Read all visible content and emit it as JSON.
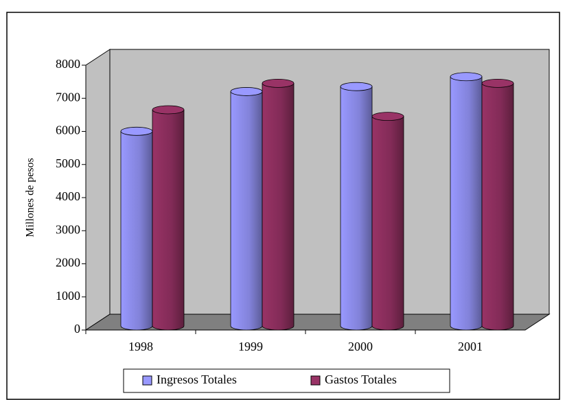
{
  "chart_data": {
    "type": "bar3d",
    "y_label": "Millones de pesos",
    "categories": [
      "1998",
      "1999",
      "2000",
      "2001"
    ],
    "series": [
      {
        "name": "Ingresos Totales",
        "color": "#9999ff",
        "values": [
          5900,
          7100,
          7250,
          7550
        ]
      },
      {
        "name": "Gastos Totales",
        "color": "#993366",
        "values": [
          6550,
          7350,
          6350,
          7350
        ]
      }
    ],
    "ylim": [
      0,
      8000
    ],
    "yticks": [
      0,
      1000,
      2000,
      3000,
      4000,
      5000,
      6000,
      7000,
      8000
    ],
    "legend": "bottom"
  }
}
